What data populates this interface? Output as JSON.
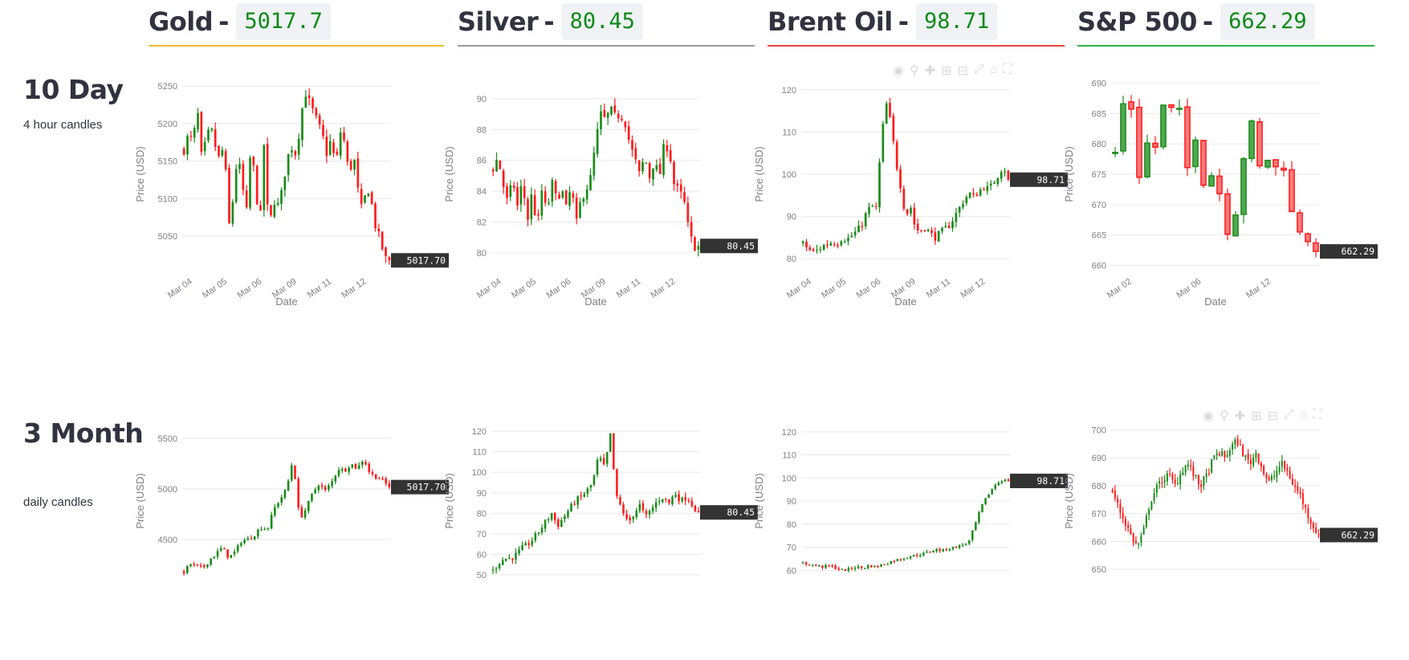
{
  "assets": [
    {
      "name": "Gold",
      "price": "5017.7",
      "accent": "#f5b82e"
    },
    {
      "name": "Silver",
      "price": "80.45",
      "accent": "#9a9a9a"
    },
    {
      "name": "Brent Oil",
      "price": "98.71",
      "accent": "#e8453c"
    },
    {
      "name": "S&P 500",
      "price": "662.29",
      "accent": "#2db34a"
    }
  ],
  "separator": "-",
  "rows": [
    {
      "title": "10 Day",
      "subtitle": "4 hour candles"
    },
    {
      "title": "3 Month",
      "subtitle": "daily candles"
    }
  ],
  "colors": {
    "up": "#1a8c1a",
    "down": "#ff1a1a",
    "tag": "#333333"
  },
  "modebar_icons": [
    "camera-icon",
    "zoom-icon",
    "pan-icon",
    "zoom-in-icon",
    "zoom-out-icon",
    "autoscale-icon",
    "home-icon",
    "fullscreen-icon"
  ],
  "chart_data": [
    {
      "type": "candlestick",
      "asset": "Gold",
      "range": "10 Day",
      "interval": "4 hour",
      "xlabel": "Date",
      "ylabel": "Price (USD)",
      "ylim": [
        5003,
        5262
      ],
      "yticks": [
        5050,
        5100,
        5150,
        5200,
        5250
      ],
      "xticks": [
        "Mar 04",
        "Mar 05",
        "Mar 06",
        "Mar 09",
        "Mar 11",
        "Mar 12"
      ],
      "last_price_label": "5017.70",
      "last": 5017.7,
      "path": [
        5165,
        5185,
        5175,
        5220,
        5150,
        5180,
        5195,
        5170,
        5150,
        5175,
        5060,
        5100,
        5160,
        5120,
        5080,
        5170,
        5120,
        5060,
        5180,
        5050,
        5100,
        5090,
        5110,
        5150,
        5170,
        5160,
        5195,
        5245,
        5230,
        5215,
        5200,
        5185,
        5160,
        5180,
        5140,
        5190,
        5175,
        5130,
        5160,
        5110,
        5080,
        5120,
        5095,
        5060,
        5045,
        5020,
        5017.7
      ]
    },
    {
      "type": "candlestick",
      "asset": "Silver",
      "range": "10 Day",
      "interval": "4 hour",
      "xlabel": "Date",
      "ylabel": "Price (USD)",
      "ylim": [
        78.8,
        91.4
      ],
      "yticks": [
        80,
        82,
        84,
        86,
        88,
        90
      ],
      "xticks": [
        "Mar 04",
        "Mar 05",
        "Mar 06",
        "Mar 09",
        "Mar 11",
        "Mar 12"
      ],
      "last_price_label": "80.45",
      "last": 80.45,
      "path": [
        85.5,
        86.2,
        84.5,
        83.2,
        84.8,
        83.0,
        84.7,
        82.0,
        84.0,
        81.5,
        84.1,
        82.5,
        84.6,
        83.4,
        84.2,
        82.8,
        84.4,
        81.8,
        83.5,
        84.1,
        84.9,
        87.2,
        89.0,
        88.6,
        89.3,
        88.8,
        89.0,
        88.5,
        87.0,
        86.1,
        85.0,
        86.3,
        84.9,
        86.0,
        84.8,
        87.0,
        86.8,
        84.5,
        84.0,
        83.5,
        81.5,
        80.4,
        80.45
      ]
    },
    {
      "type": "candlestick",
      "asset": "Brent Oil",
      "range": "10 Day",
      "interval": "4 hour",
      "xlabel": "Date",
      "ylabel": "Price (USD)",
      "ylim": [
        77,
        123
      ],
      "yticks": [
        80,
        90,
        100,
        110,
        120
      ],
      "xticks": [
        "Mar 04",
        "Mar 05",
        "Mar 06",
        "Mar 09",
        "Mar 11",
        "Mar 12"
      ],
      "last_price_label": "98.71",
      "last": 98.71,
      "path": [
        83.5,
        82.5,
        81.5,
        82.0,
        83.0,
        83.5,
        84.0,
        83.5,
        85.0,
        84.5,
        85.5,
        86.5,
        88.0,
        91.0,
        92.5,
        92.0,
        108.0,
        117.0,
        112.0,
        103.0,
        97.0,
        90.0,
        92.5,
        87.0,
        86.5,
        87.5,
        86.0,
        85.0,
        86.0,
        87.0,
        88.0,
        90.0,
        92.0,
        94.0,
        95.5,
        94.5,
        96.0,
        97.0,
        96.5,
        98.0,
        100.0,
        102.0,
        98.71
      ]
    },
    {
      "type": "candlestick",
      "asset": "S&P 500",
      "range": "10 Day",
      "interval": "4 hour",
      "xlabel": "Date",
      "ylabel": "Price (USD)",
      "ylim": [
        659,
        691
      ],
      "yticks": [
        660,
        665,
        670,
        675,
        680,
        685,
        690
      ],
      "xticks": [
        "Mar 02",
        "Mar 06",
        "Mar 12"
      ],
      "last_price_label": "662.29",
      "last": 662.29,
      "path": [
        678.5,
        686.5,
        686.0,
        675.0,
        680.0,
        679.5,
        686.0,
        685.5,
        685.0,
        676.0,
        681.5,
        674.0,
        675.0,
        672.0,
        666.0,
        669.0,
        678.0,
        683.0,
        676.0,
        677.5,
        676.0,
        676.5,
        668.5,
        666.0,
        664.5,
        662.29
      ]
    },
    {
      "type": "candlestick",
      "asset": "Gold",
      "range": "3 Month",
      "interval": "daily",
      "xlabel": "",
      "ylabel": "Price (USD)",
      "ylim": [
        4150,
        5610
      ],
      "yticks": [
        4500,
        5000,
        5500
      ],
      "xticks": [],
      "last_price_label": "5017.70",
      "last": 5017.7,
      "path": [
        4180,
        4260,
        4230,
        4220,
        4300,
        4360,
        4420,
        4320,
        4380,
        4490,
        4500,
        4550,
        4620,
        4600,
        4800,
        4900,
        5000,
        5300,
        4700,
        4800,
        4950,
        5050,
        4980,
        5060,
        5200,
        5180,
        5250,
        5200,
        5300,
        5150,
        5120,
        5080,
        5017.7
      ]
    },
    {
      "type": "candlestick",
      "asset": "Silver",
      "range": "3 Month",
      "interval": "daily",
      "xlabel": "",
      "ylabel": "Price (USD)",
      "ylim": [
        50,
        122
      ],
      "yticks": [
        50,
        60,
        70,
        80,
        90,
        100,
        110,
        120
      ],
      "xticks": [],
      "last_price_label": "80.45",
      "last": 80.45,
      "path": [
        52,
        56,
        58,
        58,
        60,
        63,
        65,
        68,
        72,
        76,
        80,
        74,
        78,
        82,
        86,
        88,
        91,
        95,
        108,
        102,
        118,
        88,
        82,
        75,
        80,
        84,
        78,
        82,
        86,
        88,
        85,
        90,
        86,
        88,
        84,
        80.45
      ]
    },
    {
      "type": "candlestick",
      "asset": "Brent Oil",
      "range": "3 Month",
      "interval": "daily",
      "xlabel": "",
      "ylabel": "Price (USD)",
      "ylim": [
        58,
        122
      ],
      "yticks": [
        60,
        70,
        80,
        90,
        100,
        110,
        120
      ],
      "xticks": [],
      "last_price_label": "98.71",
      "last": 98.71,
      "path": [
        63,
        62.5,
        62,
        61.5,
        62,
        61,
        60,
        60.5,
        61.5,
        61,
        62,
        61.5,
        62.5,
        63.5,
        64.5,
        65,
        66,
        66.5,
        67,
        68,
        69,
        68.5,
        69.5,
        70,
        71,
        72,
        80,
        88,
        93,
        97,
        99,
        98.71
      ]
    },
    {
      "type": "candlestick",
      "asset": "S&P 500",
      "range": "3 Month",
      "interval": "daily",
      "xlabel": "",
      "ylabel": "Price (USD)",
      "ylim": [
        648,
        701
      ],
      "yticks": [
        650,
        660,
        670,
        680,
        690,
        700
      ],
      "xticks": [],
      "last_price_label": "662.29",
      "last": 662.29,
      "path": [
        678,
        672,
        667,
        662,
        658,
        664,
        674,
        679,
        682,
        684,
        680,
        685,
        688,
        684,
        680,
        683,
        689,
        692,
        690,
        694,
        696,
        691,
        688,
        692,
        686,
        681,
        684,
        688,
        685,
        680,
        677,
        671,
        666,
        662.29
      ]
    }
  ]
}
